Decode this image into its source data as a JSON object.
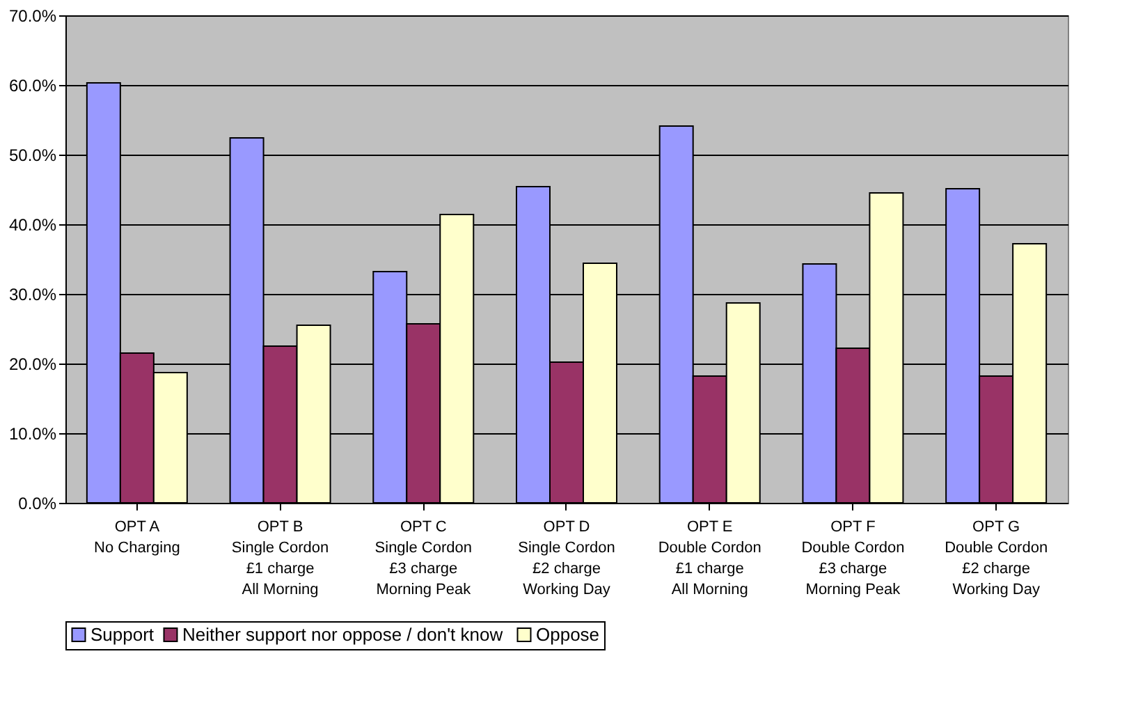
{
  "chart_data": {
    "type": "bar",
    "categories": [
      "OPT A\nNo Charging",
      "OPT B\nSingle Cordon\n£1 charge\nAll Morning",
      "OPT C\nSingle Cordon\n£3 charge\nMorning Peak",
      "OPT D\nSingle Cordon\n£2 charge\nWorking Day",
      "OPT E\nDouble Cordon\n£1 charge\nAll Morning",
      "OPT F\nDouble Cordon\n£3 charge\nMorning Peak",
      "OPT G\nDouble Cordon\n£2 charge\nWorking Day"
    ],
    "series": [
      {
        "name": "Support",
        "color": "#9999ff",
        "values": [
          60.3,
          52.4,
          33.2,
          45.4,
          54.1,
          34.3,
          45.1
        ]
      },
      {
        "name": "Neither support nor oppose  / don't know",
        "color": "#993366",
        "values": [
          21.5,
          22.5,
          25.7,
          20.2,
          18.2,
          22.2,
          18.2
        ]
      },
      {
        "name": "Oppose",
        "color": "#ffffcc",
        "values": [
          18.7,
          25.5,
          41.4,
          34.4,
          28.7,
          44.5,
          37.2
        ]
      }
    ],
    "ylim": [
      0,
      70
    ],
    "yticks": [
      {
        "value": 0,
        "label": "0.0%"
      },
      {
        "value": 10,
        "label": "10.0%"
      },
      {
        "value": 20,
        "label": "20.0%"
      },
      {
        "value": 30,
        "label": "30.0%"
      },
      {
        "value": 40,
        "label": "40.0%"
      },
      {
        "value": 50,
        "label": "50.0%"
      },
      {
        "value": 60,
        "label": "60.0%"
      },
      {
        "value": 70,
        "label": "70.0%"
      }
    ],
    "grid": "y",
    "legend": "bottom"
  }
}
